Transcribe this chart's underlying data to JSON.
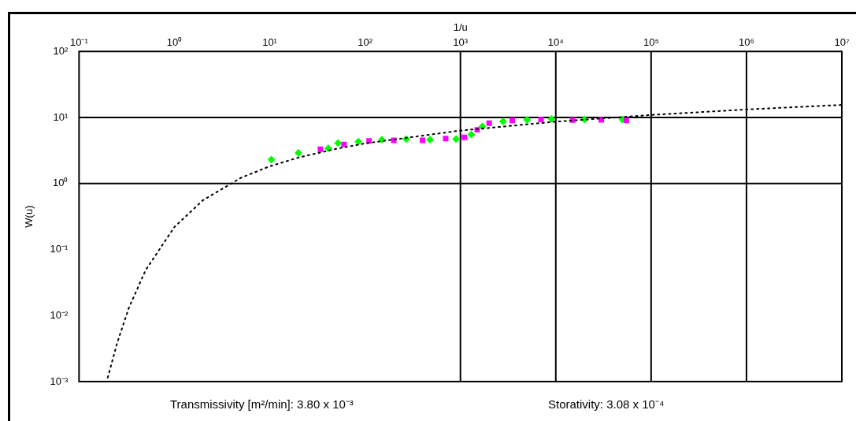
{
  "chart_data": {
    "type": "scatter",
    "xlabel": "1/u",
    "ylabel": "W(u)",
    "xlim": [
      0.1,
      10000000
    ],
    "ylim": [
      0.001,
      100
    ],
    "log": "xy",
    "grid": false,
    "legend": false,
    "xticks": [
      {
        "value": 0.1,
        "label": "10⁻¹"
      },
      {
        "value": 1,
        "label": "10⁰"
      },
      {
        "value": 10,
        "label": "10¹"
      },
      {
        "value": 100,
        "label": "10²"
      },
      {
        "value": 1000,
        "label": "10³"
      },
      {
        "value": 10000,
        "label": "10⁴"
      },
      {
        "value": 100000,
        "label": "10⁵"
      },
      {
        "value": 1000000,
        "label": "10⁶"
      },
      {
        "value": 10000000,
        "label": "10⁷"
      }
    ],
    "yticks": [
      {
        "value": 0.001,
        "label": "10⁻³"
      },
      {
        "value": 0.01,
        "label": "10⁻²"
      },
      {
        "value": 0.1,
        "label": "10⁻¹"
      },
      {
        "value": 1,
        "label": "10⁰"
      },
      {
        "value": 10,
        "label": "10¹"
      },
      {
        "value": 100,
        "label": "10²"
      }
    ],
    "ref_lines": [
      {
        "axis": "x",
        "value": 1000,
        "color": "#000000"
      },
      {
        "axis": "x",
        "value": 10000,
        "color": "#000000"
      },
      {
        "axis": "x",
        "value": 100000,
        "color": "#000000"
      },
      {
        "axis": "x",
        "value": 1000000,
        "color": "#000000"
      },
      {
        "axis": "y",
        "value": 1,
        "color": "#000000"
      },
      {
        "axis": "y",
        "value": 10,
        "color": "#000000"
      }
    ],
    "series": [
      {
        "type": "line",
        "color": "#000000",
        "line_style": "dotted",
        "marker": "none",
        "x": [
          0.2,
          0.25,
          0.333,
          0.5,
          1,
          2,
          5,
          10,
          20,
          50,
          100,
          1000,
          10000,
          100000,
          1000000,
          10000000
        ],
        "values": [
          0.00115,
          0.00378,
          0.0131,
          0.0489,
          0.219,
          0.56,
          1.22,
          1.82,
          2.47,
          3.35,
          4.04,
          6.33,
          8.63,
          10.9,
          13.2,
          15.5
        ]
      },
      {
        "type": "scatter",
        "color": "#ff00ff",
        "marker": "square",
        "x": [
          34,
          60,
          110,
          200,
          400,
          700,
          1100,
          1500,
          2000,
          3500,
          7000,
          15000,
          30000,
          55000
        ],
        "values": [
          3.3,
          3.9,
          4.4,
          4.5,
          4.5,
          4.8,
          5.0,
          6.5,
          8.2,
          9.0,
          9.3,
          9.1,
          9.2,
          9.0
        ]
      },
      {
        "type": "scatter",
        "color": "#00ff00",
        "marker": "diamond",
        "x": [
          10.4,
          20,
          41,
          52,
          85,
          150,
          270,
          480,
          900,
          1300,
          1700,
          2800,
          5000,
          9000,
          20000,
          50000
        ],
        "values": [
          2.3,
          2.9,
          3.4,
          4.1,
          4.3,
          4.6,
          4.7,
          4.6,
          4.7,
          5.5,
          7.3,
          8.7,
          9.2,
          9.5,
          9.3,
          9.3
        ]
      }
    ],
    "annotations": [
      "Transmissivity [m²/min]: 3.80 x 10⁻³",
      "Storativity: 3.08 x 10⁻⁴"
    ]
  }
}
